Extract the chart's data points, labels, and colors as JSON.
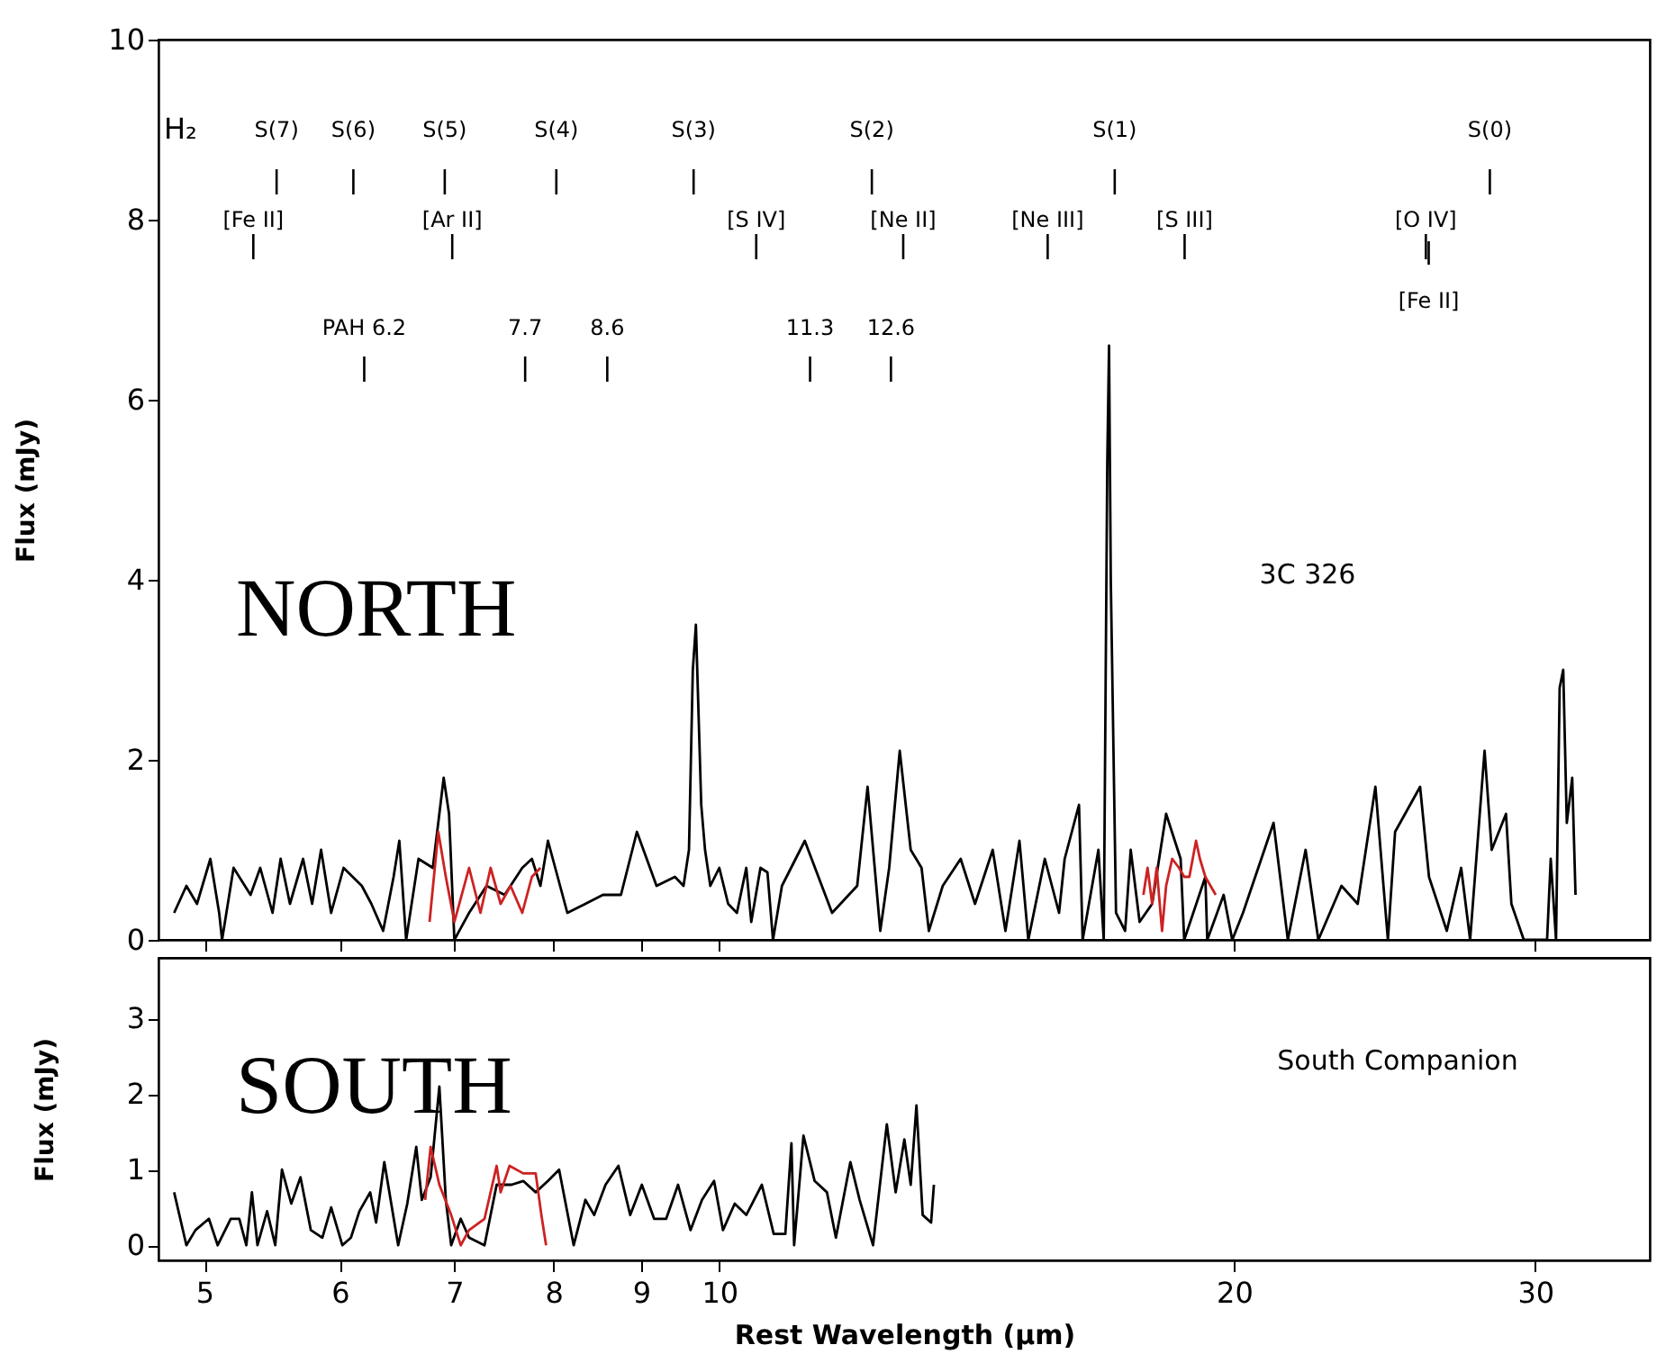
{
  "chart_data": [
    {
      "type": "line",
      "ylabel": "Flux (mJy)",
      "xlim": [
        4.7,
        35
      ],
      "xticks": [
        5,
        6,
        7,
        8,
        9,
        10,
        20,
        30
      ],
      "ylim": [
        0,
        10
      ],
      "yticks": [
        0,
        2,
        4,
        6,
        8,
        10
      ],
      "log": "x",
      "tick_labels": "y",
      "series": [
        {
          "color": "#000000",
          "x": [
            4.8,
            4.88,
            4.95,
            5.04,
            5.1,
            5.12,
            5.2,
            5.32,
            5.39,
            5.48,
            5.54,
            5.61,
            5.71,
            5.78,
            5.85,
            5.93,
            6.03,
            6.18,
            6.26,
            6.36,
            6.45,
            6.5,
            6.56,
            6.67,
            6.8,
            6.9,
            6.95,
            7.0,
            7.14,
            7.31,
            7.49,
            7.67,
            7.77,
            7.86,
            7.94,
            8.15,
            8.35,
            8.55,
            8.76,
            8.95,
            9.19,
            9.42,
            9.53,
            9.6,
            9.65,
            9.69,
            9.76,
            9.81,
            9.88,
            10.0,
            10.12,
            10.24,
            10.37,
            10.44,
            10.57,
            10.67,
            10.75,
            10.88,
            11.22,
            11.64,
            12.04,
            12.21,
            12.42,
            12.57,
            12.75,
            12.94,
            13.13,
            13.26,
            13.51,
            13.84,
            14.11,
            14.45,
            14.7,
            14.98,
            15.16,
            15.5,
            15.8,
            15.92,
            16.23,
            16.31,
            16.66,
            16.78,
            16.86,
            16.9,
            16.94,
            17.06,
            17.27,
            17.4,
            17.61,
            17.91,
            18.25,
            18.61,
            18.7,
            19.24,
            19.29,
            19.72,
            19.95,
            20.24,
            21.09,
            21.5,
            22.02,
            22.4,
            23.11,
            23.62,
            24.19,
            24.6,
            24.84,
            25.69,
            26.0,
            26.63,
            27.15,
            27.48,
            28.02,
            28.29,
            28.84,
            29.05,
            29.54,
            30.48,
            30.63,
            30.85,
            31.0,
            31.15,
            31.3,
            31.53,
            31.67
          ],
          "values": [
            0.3,
            0.6,
            0.4,
            0.9,
            0.3,
            0.0,
            0.8,
            0.5,
            0.8,
            0.3,
            0.9,
            0.4,
            0.9,
            0.4,
            1.0,
            0.3,
            0.8,
            0.6,
            0.4,
            0.1,
            0.7,
            1.1,
            0.0,
            0.9,
            0.8,
            1.8,
            1.4,
            0.0,
            0.3,
            0.6,
            0.5,
            0.8,
            0.9,
            0.6,
            1.1,
            0.3,
            0.4,
            0.5,
            0.5,
            1.2,
            0.6,
            0.7,
            0.6,
            1.0,
            3.0,
            3.5,
            1.5,
            1.0,
            0.6,
            0.8,
            0.4,
            0.3,
            0.8,
            0.2,
            0.8,
            0.75,
            0.0,
            0.6,
            1.1,
            0.3,
            0.6,
            1.7,
            0.1,
            0.8,
            2.1,
            1.0,
            0.8,
            0.1,
            0.6,
            0.9,
            0.4,
            1.0,
            0.1,
            1.1,
            0.0,
            0.9,
            0.3,
            0.9,
            1.5,
            0.0,
            1.0,
            0.0,
            5.3,
            6.6,
            4.0,
            0.3,
            0.1,
            1.0,
            0.2,
            0.4,
            1.4,
            0.9,
            0.0,
            0.7,
            0.0,
            0.5,
            0.0,
            0.3,
            1.3,
            0.0,
            1.0,
            0.0,
            0.6,
            0.4,
            1.7,
            0.0,
            1.2,
            1.7,
            0.7,
            0.1,
            0.8,
            0.0,
            2.1,
            1.0,
            1.4,
            0.4,
            0.0,
            0.0,
            0.9,
            0.0,
            2.8,
            3.0,
            1.3,
            1.8,
            0.5
          ]
        },
        {
          "color": "#cc2222",
          "x": [
            6.77,
            6.85,
            6.92,
            7.0,
            7.14,
            7.25,
            7.35,
            7.45,
            7.55,
            7.67,
            7.77,
            7.86
          ],
          "values": [
            0.2,
            1.2,
            0.7,
            0.2,
            0.8,
            0.3,
            0.8,
            0.4,
            0.6,
            0.3,
            0.7,
            0.8
          ]
        },
        {
          "color": "#cc2222",
          "x": [
            17.7,
            17.8,
            17.91,
            18.02,
            18.15,
            18.25,
            18.4,
            18.57,
            18.7,
            18.83,
            19.0,
            19.1,
            19.24,
            19.51
          ],
          "values": [
            0.5,
            0.8,
            0.4,
            0.8,
            0.1,
            0.6,
            0.9,
            0.8,
            0.7,
            0.7,
            1.1,
            0.9,
            0.7,
            0.5
          ]
        }
      ],
      "ref_lines": [
        {
          "axis": "x",
          "value": 5.51,
          "label": "S(7)"
        },
        {
          "axis": "x",
          "value": 6.11,
          "label": "S(6)"
        },
        {
          "axis": "x",
          "value": 6.91,
          "label": "S(5)"
        },
        {
          "axis": "x",
          "value": 8.03,
          "label": "S(4)"
        },
        {
          "axis": "x",
          "value": 9.66,
          "label": "S(3)"
        },
        {
          "axis": "x",
          "value": 12.28,
          "label": "S(2)"
        },
        {
          "axis": "x",
          "value": 17.03,
          "label": "S(1)"
        },
        {
          "axis": "x",
          "value": 28.22,
          "label": "S(0)"
        },
        {
          "axis": "x",
          "value": 5.34,
          "label": "[Fe II]"
        },
        {
          "axis": "x",
          "value": 6.98,
          "label": "[Ar II]"
        },
        {
          "axis": "x",
          "value": 10.51,
          "label": "[S IV]"
        },
        {
          "axis": "x",
          "value": 12.81,
          "label": "[Ne II]"
        },
        {
          "axis": "x",
          "value": 15.56,
          "label": "[Ne III]"
        },
        {
          "axis": "x",
          "value": 18.71,
          "label": "[S III]"
        },
        {
          "axis": "x",
          "value": 25.89,
          "label": "[O IV]"
        },
        {
          "axis": "x",
          "value": 25.99,
          "label": "[Fe II]"
        },
        {
          "axis": "x",
          "value": 6.2,
          "label": "PAH 6.2"
        },
        {
          "axis": "x",
          "value": 7.7,
          "label": "7.7"
        },
        {
          "axis": "x",
          "value": 8.6,
          "label": "8.6"
        },
        {
          "axis": "x",
          "value": 11.3,
          "label": "11.3"
        },
        {
          "axis": "x",
          "value": 12.6,
          "label": "12.6"
        }
      ],
      "annotations": [
        "NORTH",
        "3C 326",
        "H₂"
      ]
    },
    {
      "type": "line",
      "xlabel": "Rest Wavelength (μm)",
      "ylabel": "Flux (mJy)",
      "xlim": [
        4.7,
        35
      ],
      "xticks": [
        5,
        6,
        7,
        8,
        9,
        10,
        20,
        30
      ],
      "ylim": [
        -0.2,
        3.8
      ],
      "yticks": [
        0,
        1,
        2,
        3
      ],
      "log": "x",
      "series": [
        {
          "color": "#000000",
          "x": [
            4.8,
            4.88,
            4.94,
            5.03,
            5.09,
            5.18,
            5.24,
            5.29,
            5.33,
            5.37,
            5.44,
            5.5,
            5.55,
            5.62,
            5.69,
            5.77,
            5.86,
            5.93,
            6.02,
            6.09,
            6.16,
            6.25,
            6.3,
            6.37,
            6.49,
            6.57,
            6.65,
            6.7,
            6.78,
            6.86,
            6.92,
            6.97,
            7.06,
            7.14,
            7.29,
            7.41,
            7.56,
            7.68,
            7.81,
            7.94,
            8.06,
            8.22,
            8.35,
            8.45,
            8.58,
            8.73,
            8.87,
            9.01,
            9.16,
            9.31,
            9.46,
            9.62,
            9.77,
            9.93,
            10.05,
            10.21,
            10.37,
            10.59,
            10.76,
            10.93,
            11.02,
            11.06,
            11.2,
            11.37,
            11.56,
            11.7,
            11.93,
            12.08,
            12.3,
            12.53,
            12.68,
            12.83,
            12.94,
            13.04,
            13.15,
            13.3,
            13.35
          ],
          "values": [
            0.7,
            0.0,
            0.2,
            0.35,
            0.0,
            0.35,
            0.35,
            0.0,
            0.7,
            0.0,
            0.45,
            0.0,
            1.0,
            0.55,
            0.9,
            0.2,
            0.1,
            0.5,
            0.0,
            0.1,
            0.45,
            0.7,
            0.3,
            1.1,
            0.0,
            0.55,
            1.3,
            0.6,
            0.9,
            2.1,
            0.6,
            0.0,
            0.35,
            0.1,
            0.0,
            0.8,
            0.8,
            0.85,
            0.7,
            0.85,
            1.0,
            0.0,
            0.6,
            0.4,
            0.8,
            1.05,
            0.4,
            0.8,
            0.35,
            0.35,
            0.8,
            0.2,
            0.6,
            0.85,
            0.2,
            0.55,
            0.4,
            0.8,
            0.15,
            0.15,
            1.35,
            0.0,
            1.45,
            0.85,
            0.7,
            0.1,
            1.1,
            0.6,
            0.0,
            1.6,
            0.7,
            1.4,
            0.8,
            1.85,
            0.4,
            0.3,
            0.8
          ]
        },
        {
          "color": "#cc2222",
          "x": [
            6.73,
            6.78,
            6.86,
            6.97,
            7.06,
            7.14,
            7.29,
            7.41,
            7.45,
            7.54,
            7.68,
            7.81,
            7.87,
            7.92
          ],
          "values": [
            0.6,
            1.3,
            0.8,
            0.4,
            0.0,
            0.2,
            0.35,
            1.05,
            0.7,
            1.05,
            0.95,
            0.95,
            0.4,
            0.0
          ]
        }
      ],
      "annotations": [
        "SOUTH",
        "South Companion"
      ]
    }
  ]
}
